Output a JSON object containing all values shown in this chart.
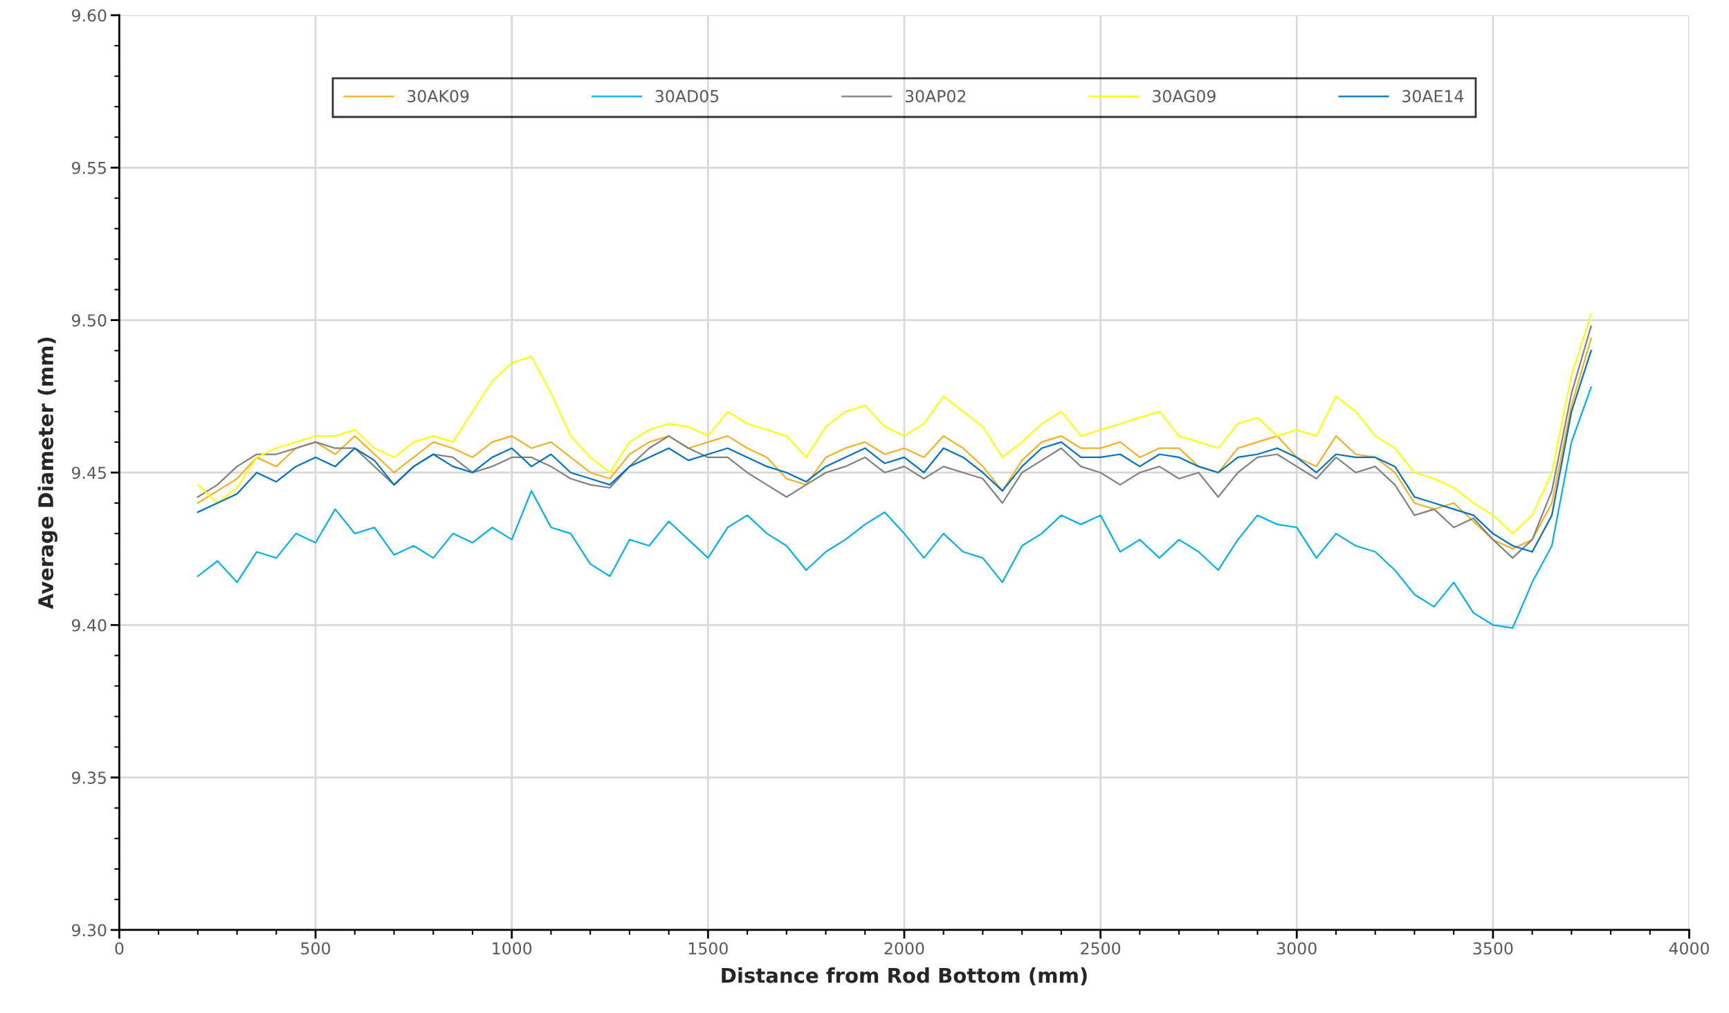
{
  "chart_data": {
    "type": "line",
    "xlabel": "Distance from Rod Bottom (mm)",
    "ylabel": "Average Diameter (mm)",
    "x": [
      200,
      250,
      300,
      350,
      400,
      450,
      500,
      550,
      600,
      650,
      700,
      750,
      800,
      850,
      900,
      950,
      1000,
      1050,
      1100,
      1150,
      1200,
      1250,
      1300,
      1350,
      1400,
      1450,
      1500,
      1550,
      1600,
      1650,
      1700,
      1750,
      1800,
      1850,
      1900,
      1950,
      2000,
      2050,
      2100,
      2150,
      2200,
      2250,
      2300,
      2350,
      2400,
      2450,
      2500,
      2550,
      2600,
      2650,
      2700,
      2750,
      2800,
      2850,
      2900,
      2950,
      3000,
      3050,
      3100,
      3150,
      3200,
      3250,
      3300,
      3350,
      3400,
      3450,
      3500,
      3550,
      3600,
      3650,
      3700,
      3750
    ],
    "xlim": [
      0,
      4000
    ],
    "xticks": [
      0,
      500,
      1000,
      1500,
      2000,
      2500,
      3000,
      3500,
      4000
    ],
    "ylim": [
      9.3,
      9.6
    ],
    "yticks": [
      {
        "value": 9.3,
        "label": "9.30"
      },
      {
        "value": 9.35,
        "label": "9.35"
      },
      {
        "value": 9.4,
        "label": "9.40"
      },
      {
        "value": 9.45,
        "label": "9.45"
      },
      {
        "value": 9.5,
        "label": "9.50"
      },
      {
        "value": 9.55,
        "label": "9.55"
      },
      {
        "value": 9.6,
        "label": "9.60"
      }
    ],
    "grid": true,
    "legend": "top",
    "marker": "none",
    "line_style": "solid",
    "series": [
      {
        "name": "30AK09",
        "color": "#f5b022",
        "values": [
          9.44,
          9.444,
          9.448,
          9.455,
          9.452,
          9.458,
          9.46,
          9.456,
          9.462,
          9.456,
          9.45,
          9.455,
          9.46,
          9.458,
          9.455,
          9.46,
          9.462,
          9.458,
          9.46,
          9.455,
          9.45,
          9.448,
          9.456,
          9.46,
          9.462,
          9.458,
          9.46,
          9.462,
          9.458,
          9.455,
          9.448,
          9.446,
          9.455,
          9.458,
          9.46,
          9.456,
          9.458,
          9.455,
          9.462,
          9.458,
          9.452,
          9.444,
          9.454,
          9.46,
          9.462,
          9.458,
          9.458,
          9.46,
          9.455,
          9.458,
          9.458,
          9.452,
          9.45,
          9.458,
          9.46,
          9.462,
          9.455,
          9.452,
          9.462,
          9.456,
          9.455,
          9.45,
          9.44,
          9.438,
          9.44,
          9.434,
          9.428,
          9.425,
          9.428,
          9.44,
          9.472,
          9.494
        ]
      },
      {
        "name": "30AD05",
        "color": "#00b0f0",
        "values": [
          9.416,
          9.421,
          9.414,
          9.424,
          9.422,
          9.43,
          9.427,
          9.438,
          9.43,
          9.432,
          9.423,
          9.426,
          9.422,
          9.43,
          9.427,
          9.432,
          9.428,
          9.444,
          9.432,
          9.43,
          9.42,
          9.416,
          9.428,
          9.426,
          9.434,
          9.428,
          9.422,
          9.432,
          9.436,
          9.43,
          9.426,
          9.418,
          9.424,
          9.428,
          9.433,
          9.437,
          9.43,
          9.422,
          9.43,
          9.424,
          9.422,
          9.414,
          9.426,
          9.43,
          9.436,
          9.433,
          9.436,
          9.424,
          9.428,
          9.422,
          9.428,
          9.424,
          9.418,
          9.428,
          9.436,
          9.433,
          9.432,
          9.422,
          9.43,
          9.426,
          9.424,
          9.418,
          9.41,
          9.406,
          9.414,
          9.404,
          9.4,
          9.399,
          9.414,
          9.426,
          9.46,
          9.478
        ]
      },
      {
        "name": "30AP02",
        "color": "#808080",
        "values": [
          9.442,
          9.446,
          9.452,
          9.456,
          9.456,
          9.458,
          9.46,
          9.458,
          9.458,
          9.452,
          9.446,
          9.452,
          9.456,
          9.455,
          9.45,
          9.452,
          9.455,
          9.455,
          9.452,
          9.448,
          9.446,
          9.445,
          9.452,
          9.458,
          9.462,
          9.458,
          9.455,
          9.455,
          9.45,
          9.446,
          9.442,
          9.446,
          9.45,
          9.452,
          9.455,
          9.45,
          9.452,
          9.448,
          9.452,
          9.45,
          9.448,
          9.44,
          9.45,
          9.454,
          9.458,
          9.452,
          9.45,
          9.446,
          9.45,
          9.452,
          9.448,
          9.45,
          9.442,
          9.45,
          9.455,
          9.456,
          9.452,
          9.448,
          9.455,
          9.45,
          9.452,
          9.446,
          9.436,
          9.438,
          9.432,
          9.435,
          9.428,
          9.422,
          9.428,
          9.444,
          9.476,
          9.498
        ]
      },
      {
        "name": "30AG09",
        "color": "#ffff00",
        "values": [
          9.446,
          9.44,
          9.445,
          9.455,
          9.458,
          9.46,
          9.462,
          9.462,
          9.464,
          9.458,
          9.455,
          9.46,
          9.462,
          9.46,
          9.47,
          9.48,
          9.486,
          9.488,
          9.476,
          9.462,
          9.455,
          9.45,
          9.46,
          9.464,
          9.466,
          9.465,
          9.462,
          9.47,
          9.466,
          9.464,
          9.462,
          9.455,
          9.465,
          9.47,
          9.472,
          9.465,
          9.462,
          9.466,
          9.475,
          9.47,
          9.465,
          9.455,
          9.46,
          9.466,
          9.47,
          9.462,
          9.464,
          9.466,
          9.468,
          9.47,
          9.462,
          9.46,
          9.458,
          9.466,
          9.468,
          9.462,
          9.464,
          9.462,
          9.475,
          9.47,
          9.462,
          9.458,
          9.45,
          9.448,
          9.445,
          9.44,
          9.436,
          9.43,
          9.436,
          9.45,
          9.482,
          9.502
        ]
      },
      {
        "name": "30AE14",
        "color": "#0070c0",
        "values": [
          9.437,
          9.44,
          9.443,
          9.45,
          9.447,
          9.452,
          9.455,
          9.452,
          9.458,
          9.454,
          9.446,
          9.452,
          9.456,
          9.452,
          9.45,
          9.455,
          9.458,
          9.452,
          9.456,
          9.45,
          9.448,
          9.446,
          9.452,
          9.455,
          9.458,
          9.454,
          9.456,
          9.458,
          9.455,
          9.452,
          9.45,
          9.447,
          9.452,
          9.455,
          9.458,
          9.453,
          9.455,
          9.45,
          9.458,
          9.455,
          9.45,
          9.444,
          9.452,
          9.458,
          9.46,
          9.455,
          9.455,
          9.456,
          9.452,
          9.456,
          9.455,
          9.452,
          9.45,
          9.455,
          9.456,
          9.458,
          9.455,
          9.45,
          9.456,
          9.455,
          9.455,
          9.452,
          9.442,
          9.44,
          9.438,
          9.436,
          9.43,
          9.426,
          9.424,
          9.436,
          9.47,
          9.49
        ]
      }
    ]
  }
}
